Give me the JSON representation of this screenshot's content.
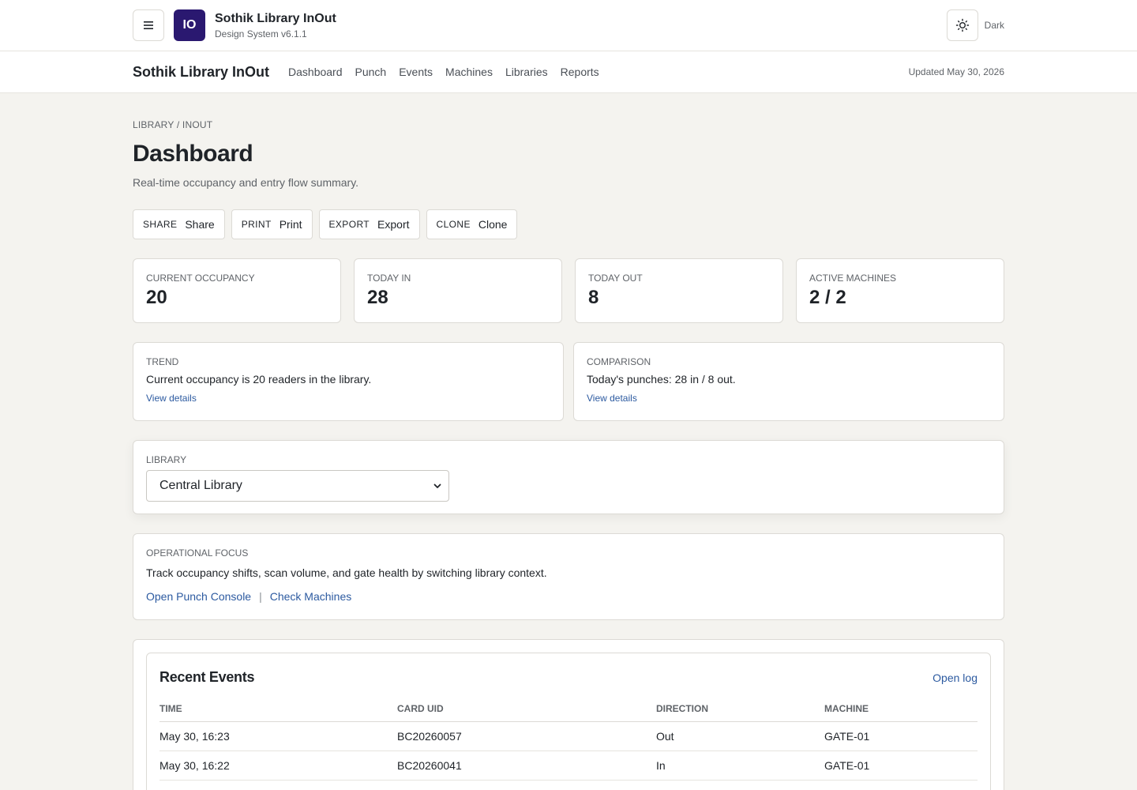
{
  "header": {
    "logo_text": "IO",
    "brand_name": "Sothik Library InOut",
    "brand_sub": "Design System v6.1.1",
    "theme_label": "Dark"
  },
  "nav": {
    "brand": "Sothik Library InOut",
    "links": [
      "Dashboard",
      "Punch",
      "Events",
      "Machines",
      "Libraries",
      "Reports"
    ],
    "updated": "Updated May 30, 2026"
  },
  "page": {
    "breadcrumb": "LIBRARY / INOUT",
    "title": "Dashboard",
    "subtitle": "Real-time occupancy and entry flow summary."
  },
  "actions": [
    {
      "tag": "SHARE",
      "label": "Share"
    },
    {
      "tag": "PRINT",
      "label": "Print"
    },
    {
      "tag": "EXPORT",
      "label": "Export"
    },
    {
      "tag": "CLONE",
      "label": "Clone"
    }
  ],
  "stats": [
    {
      "label": "CURRENT OCCUPANCY",
      "value": "20"
    },
    {
      "label": "TODAY IN",
      "value": "28"
    },
    {
      "label": "TODAY OUT",
      "value": "8"
    },
    {
      "label": "ACTIVE MACHINES",
      "value": "2 / 2"
    }
  ],
  "insights": [
    {
      "label": "TREND",
      "text": "Current occupancy is 20 readers in the library.",
      "link": "View details"
    },
    {
      "label": "COMPARISON",
      "text": "Today's punches: 28 in / 8 out.",
      "link": "View details"
    }
  ],
  "library": {
    "label": "LIBRARY",
    "selected": "Central Library"
  },
  "focus": {
    "label": "OPERATIONAL FOCUS",
    "text": "Track occupancy shifts, scan volume, and gate health by switching library context.",
    "link1": "Open Punch Console",
    "separator": "|",
    "link2": "Check Machines"
  },
  "events": {
    "title": "Recent Events",
    "open_log": "Open log",
    "columns": [
      "TIME",
      "CARD UID",
      "DIRECTION",
      "MACHINE"
    ],
    "rows": [
      [
        "May 30, 16:23",
        "BC20260057",
        "Out",
        "GATE-01"
      ],
      [
        "May 30, 16:22",
        "BC20260041",
        "In",
        "GATE-01"
      ]
    ]
  },
  "colors": {
    "accent": "#2a1870",
    "link": "#2c5aa0",
    "background": "#f4f3ef"
  }
}
